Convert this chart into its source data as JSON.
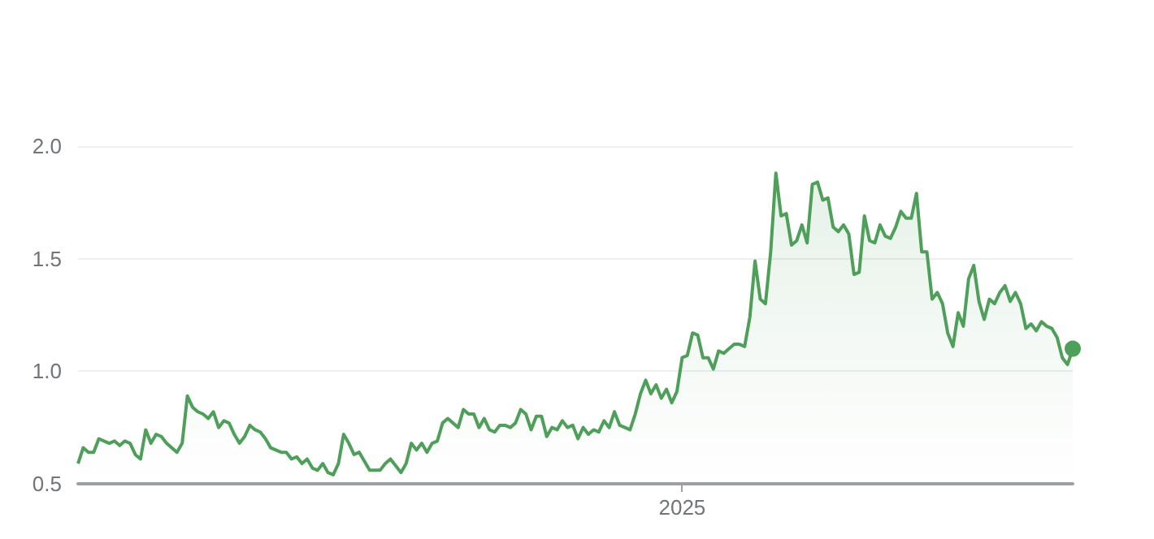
{
  "chart_data": {
    "type": "area",
    "grid": "y",
    "color": "#4e9f5a",
    "marker": "none",
    "ylim": [
      0.5,
      2.0
    ],
    "yticks": [
      {
        "value": 0.5,
        "label": "0.5"
      },
      {
        "value": 1,
        "label": "1.0"
      },
      {
        "value": 1.5,
        "label": "1.5"
      },
      {
        "value": 2,
        "label": "2.0"
      }
    ],
    "categories": [
      null,
      null,
      null,
      null,
      null,
      null,
      null,
      null,
      null,
      null,
      null,
      null,
      null,
      null,
      null,
      null,
      null,
      null,
      null,
      null,
      null,
      null,
      null,
      null,
      null,
      null,
      null,
      null,
      null,
      null,
      null,
      null,
      null,
      null,
      null,
      null,
      null,
      null,
      null,
      null,
      null,
      null,
      null,
      null,
      null,
      null,
      null,
      null,
      null,
      null,
      null,
      null,
      null,
      null,
      null,
      null,
      null,
      null,
      null,
      null,
      null,
      null,
      null,
      null,
      null,
      null,
      null,
      null,
      null,
      null,
      null,
      null,
      null,
      null,
      null,
      null,
      null,
      null,
      null,
      null,
      null,
      null,
      null,
      null,
      null,
      null,
      null,
      null,
      null,
      null,
      null,
      null,
      null,
      null,
      null,
      null,
      null,
      null,
      null,
      null,
      null,
      null,
      null,
      null,
      null,
      null,
      null,
      null,
      null,
      null,
      null,
      null,
      null,
      null,
      null,
      null,
      "2025",
      null,
      null,
      null,
      null,
      null,
      null,
      null,
      null,
      null,
      null,
      null,
      null,
      null,
      null,
      null,
      null,
      null,
      null,
      null,
      null,
      null,
      null,
      null,
      null,
      null,
      null,
      null,
      null,
      null,
      null,
      null,
      null,
      null,
      null,
      null,
      null,
      null,
      null,
      null,
      null,
      null,
      null,
      null,
      null,
      null,
      null,
      null,
      null,
      null,
      null,
      null,
      null,
      null,
      null,
      null,
      null,
      null,
      null,
      null,
      null,
      null,
      null,
      null,
      null,
      null,
      null,
      null,
      null,
      null,
      null,
      null,
      null,
      null,
      null,
      null
    ],
    "values": [
      0.59,
      0.66,
      0.64,
      0.64,
      0.7,
      0.69,
      0.68,
      0.69,
      0.67,
      0.69,
      0.68,
      0.63,
      0.61,
      0.74,
      0.68,
      0.72,
      0.71,
      0.68,
      0.66,
      0.64,
      0.68,
      0.89,
      0.84,
      0.82,
      0.81,
      0.79,
      0.82,
      0.75,
      0.78,
      0.77,
      0.72,
      0.68,
      0.71,
      0.76,
      0.74,
      0.73,
      0.7,
      0.66,
      0.65,
      0.64,
      0.64,
      0.61,
      0.62,
      0.59,
      0.61,
      0.57,
      0.56,
      0.59,
      0.55,
      0.54,
      0.59,
      0.72,
      0.68,
      0.63,
      0.64,
      0.6,
      0.56,
      0.56,
      0.56,
      0.59,
      0.61,
      0.58,
      0.55,
      0.59,
      0.68,
      0.65,
      0.68,
      0.64,
      0.68,
      0.69,
      0.77,
      0.79,
      0.77,
      0.75,
      0.83,
      0.81,
      0.81,
      0.75,
      0.79,
      0.74,
      0.73,
      0.76,
      0.76,
      0.75,
      0.77,
      0.83,
      0.81,
      0.74,
      0.8,
      0.8,
      0.71,
      0.75,
      0.74,
      0.78,
      0.75,
      0.76,
      0.7,
      0.75,
      0.72,
      0.74,
      0.73,
      0.78,
      0.75,
      0.82,
      0.76,
      0.75,
      0.74,
      0.81,
      0.9,
      0.96,
      0.9,
      0.94,
      0.88,
      0.92,
      0.86,
      0.91,
      1.06,
      1.07,
      1.17,
      1.16,
      1.06,
      1.06,
      1.01,
      1.09,
      1.08,
      1.1,
      1.12,
      1.12,
      1.11,
      1.24,
      1.49,
      1.32,
      1.3,
      1.53,
      1.88,
      1.69,
      1.7,
      1.56,
      1.58,
      1.65,
      1.57,
      1.83,
      1.84,
      1.76,
      1.77,
      1.64,
      1.62,
      1.65,
      1.61,
      1.43,
      1.44,
      1.69,
      1.58,
      1.57,
      1.65,
      1.6,
      1.59,
      1.64,
      1.71,
      1.68,
      1.68,
      1.79,
      1.53,
      1.53,
      1.32,
      1.35,
      1.3,
      1.17,
      1.11,
      1.26,
      1.2,
      1.41,
      1.47,
      1.31,
      1.23,
      1.32,
      1.3,
      1.35,
      1.38,
      1.31,
      1.35,
      1.3,
      1.19,
      1.21,
      1.18,
      1.22,
      1.2,
      1.19,
      1.15,
      1.06,
      1.03,
      1.1
    ]
  }
}
